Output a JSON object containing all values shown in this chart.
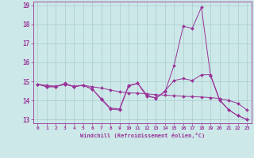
{
  "xlabel": "Windchill (Refroidissement éolien,°C)",
  "background_color": "#cce8e8",
  "grid_color": "#aacccc",
  "line_color": "#993399",
  "xlim": [
    -0.5,
    23.5
  ],
  "ylim": [
    12.8,
    19.2
  ],
  "yticks": [
    13,
    14,
    15,
    16,
    17,
    18,
    19
  ],
  "xticks": [
    0,
    1,
    2,
    3,
    4,
    5,
    6,
    7,
    8,
    9,
    10,
    11,
    12,
    13,
    14,
    15,
    16,
    17,
    18,
    19,
    20,
    21,
    22,
    23
  ],
  "series": [
    {
      "x": [
        0,
        1,
        2,
        3,
        4,
        5,
        6,
        7,
        8,
        9,
        10,
        11,
        12,
        13,
        14,
        15,
        16,
        17,
        18,
        19,
        20,
        21,
        22,
        23
      ],
      "y": [
        14.85,
        14.72,
        14.72,
        14.9,
        14.72,
        14.8,
        14.6,
        14.1,
        13.6,
        13.55,
        14.8,
        14.9,
        14.2,
        14.15,
        14.45,
        15.85,
        17.9,
        17.8,
        18.9,
        15.3,
        14.0,
        13.5,
        13.2,
        13.0
      ]
    },
    {
      "x": [
        0,
        1,
        2,
        3,
        4,
        5,
        6,
        7,
        8,
        9,
        10,
        11,
        12,
        13,
        14,
        15,
        16,
        17,
        18,
        19,
        20,
        21,
        22,
        23
      ],
      "y": [
        14.85,
        14.8,
        14.75,
        14.85,
        14.75,
        14.8,
        14.72,
        14.65,
        14.55,
        14.45,
        14.4,
        14.38,
        14.35,
        14.3,
        14.28,
        14.25,
        14.22,
        14.2,
        14.18,
        14.15,
        14.1,
        14.0,
        13.85,
        13.5
      ]
    },
    {
      "x": [
        0,
        1,
        2,
        3,
        4,
        5,
        6,
        7,
        8,
        9,
        10,
        11,
        12,
        13,
        14,
        15,
        16,
        17,
        18,
        19,
        20,
        21,
        22,
        23
      ],
      "y": [
        14.85,
        14.72,
        14.72,
        14.85,
        14.72,
        14.8,
        14.6,
        14.05,
        13.55,
        13.5,
        14.75,
        14.9,
        14.3,
        14.1,
        14.5,
        15.05,
        15.15,
        15.05,
        15.35,
        15.35,
        14.05,
        13.5,
        13.2,
        13.0
      ]
    }
  ]
}
